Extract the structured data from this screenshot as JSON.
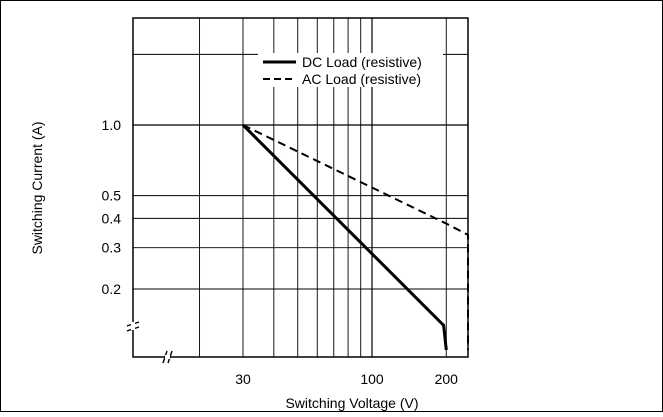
{
  "chart_data": {
    "type": "line",
    "xlabel": "Switching Voltage (V)",
    "ylabel": "Switching Current (A)",
    "x_scale": "log",
    "y_scale": "log",
    "xlim": [
      10,
      300
    ],
    "ylim": [
      0.1,
      3
    ],
    "grid": true,
    "legend_position": "top-right",
    "x_ticks": [
      {
        "value": 30,
        "label": "30"
      },
      {
        "value": 100,
        "label": "100"
      },
      {
        "value": 200,
        "label": "200"
      }
    ],
    "y_ticks": [
      {
        "value": 1.0,
        "label": "1.0"
      },
      {
        "value": 0.5,
        "label": "0.5"
      },
      {
        "value": 0.4,
        "label": "0.4"
      },
      {
        "value": 0.3,
        "label": "0.3"
      },
      {
        "value": 0.2,
        "label": "0.2"
      }
    ],
    "axis_breaks": [
      "x",
      "y"
    ],
    "series": [
      {
        "name": "DC Load (resistive)",
        "style": "solid",
        "color": "#000000",
        "points": [
          [
            30,
            1.0
          ],
          [
            195,
            0.14
          ],
          [
            200,
            0.11
          ]
        ]
      },
      {
        "name": "AC Load (resistive)",
        "style": "dashed",
        "color": "#000000",
        "points": [
          [
            30,
            1.0
          ],
          [
            200,
            0.38
          ],
          [
            245,
            0.34
          ],
          [
            245,
            0.11
          ]
        ]
      }
    ]
  }
}
